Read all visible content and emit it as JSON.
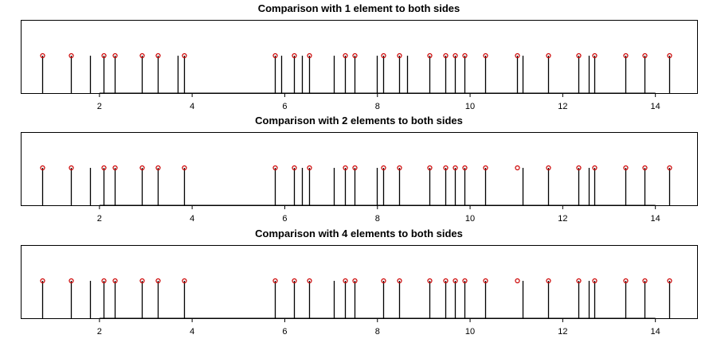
{
  "chart_data": [
    {
      "type": "stem",
      "title": "Comparison with 1 element to both sides",
      "xlim": [
        0.3,
        14.9
      ],
      "ticks": [
        "2",
        "4",
        "6",
        "8",
        "10",
        "12",
        "14"
      ],
      "x": [
        0.76,
        1.38,
        1.8,
        2.08,
        2.33,
        2.92,
        3.25,
        3.69,
        3.82,
        5.78,
        5.93,
        6.2,
        6.37,
        6.52,
        7.05,
        7.3,
        7.5,
        7.98,
        8.13,
        8.47,
        8.64,
        9.13,
        9.46,
        9.67,
        9.88,
        10.32,
        11.02,
        11.14,
        11.69,
        12.33,
        12.56,
        12.69,
        13.36,
        13.77,
        14.3
      ],
      "marked": [
        0.76,
        1.38,
        2.08,
        2.33,
        2.92,
        3.25,
        3.82,
        5.78,
        6.2,
        6.52,
        7.3,
        7.5,
        8.13,
        8.47,
        9.13,
        9.46,
        9.67,
        9.88,
        10.32,
        11.02,
        11.69,
        12.33,
        12.69,
        13.36,
        13.77,
        14.3
      ]
    },
    {
      "type": "stem",
      "title": "Comparison with 2 elements to both sides",
      "xlim": [
        0.3,
        14.9
      ],
      "ticks": [
        "2",
        "4",
        "6",
        "8",
        "10",
        "12",
        "14"
      ],
      "x": [
        0.76,
        1.38,
        1.8,
        2.08,
        2.33,
        2.92,
        3.25,
        3.82,
        5.78,
        6.2,
        6.37,
        6.52,
        7.05,
        7.3,
        7.5,
        7.98,
        8.13,
        8.47,
        9.13,
        9.46,
        9.67,
        9.88,
        10.32,
        11.14,
        11.69,
        12.33,
        12.56,
        12.69,
        13.36,
        13.77,
        14.3
      ],
      "marked": [
        0.76,
        1.38,
        2.08,
        2.33,
        2.92,
        3.25,
        3.82,
        5.78,
        6.2,
        6.52,
        7.3,
        7.5,
        8.13,
        8.47,
        9.13,
        9.46,
        9.67,
        9.88,
        10.32,
        11.02,
        11.69,
        12.33,
        12.69,
        13.36,
        13.77,
        14.3
      ]
    },
    {
      "type": "stem",
      "title": "Comparison with 4 elements to both sides",
      "xlim": [
        0.3,
        14.9
      ],
      "ticks": [
        "2",
        "4",
        "6",
        "8",
        "10",
        "12",
        "14"
      ],
      "x": [
        0.76,
        1.38,
        1.8,
        2.08,
        2.33,
        2.92,
        3.25,
        3.82,
        5.78,
        6.2,
        6.52,
        7.05,
        7.3,
        7.5,
        8.13,
        8.47,
        9.13,
        9.46,
        9.67,
        9.88,
        10.32,
        11.14,
        11.69,
        12.33,
        12.56,
        12.69,
        13.36,
        13.77,
        14.3
      ],
      "marked": [
        0.76,
        1.38,
        2.08,
        2.33,
        2.92,
        3.25,
        3.82,
        5.78,
        6.2,
        6.52,
        7.3,
        7.5,
        8.13,
        8.47,
        9.13,
        9.46,
        9.67,
        9.88,
        10.32,
        11.02,
        11.69,
        12.33,
        12.69,
        13.36,
        13.77,
        14.3
      ]
    }
  ],
  "colors": {
    "stem": "#000000",
    "marker": "#cc0000",
    "frame": "#000000",
    "background": "#ffffff"
  }
}
